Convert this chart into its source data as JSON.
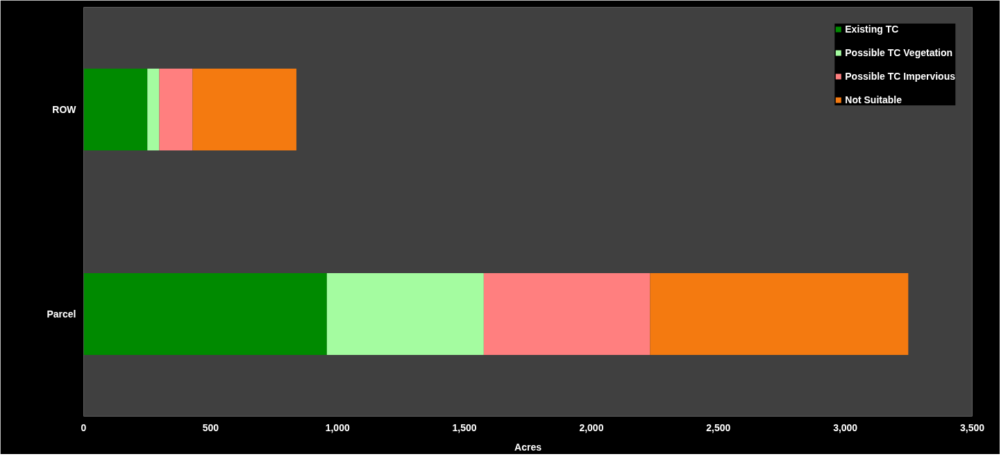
{
  "chart_data": {
    "type": "bar",
    "orientation": "horizontal",
    "stacked": true,
    "xlabel": "Acres",
    "categories": [
      "ROW",
      "Parcel"
    ],
    "series": [
      {
        "name": "Existing TC",
        "color": "#008a00",
        "values": [
          251,
          958
        ]
      },
      {
        "name": "Possible TC Vegetation",
        "color": "#a4fca0",
        "values": [
          47,
          618
        ]
      },
      {
        "name": "Possible TC Impervious",
        "color": "#ff7f7f",
        "values": [
          131,
          655
        ]
      },
      {
        "name": "Not Suitable",
        "color": "#f47a10",
        "values": [
          409,
          1017
        ]
      }
    ],
    "xlim": [
      0,
      3500
    ],
    "xticks": [
      0,
      {
        "value": 500,
        "label": "500"
      },
      {
        "value": 1000,
        "label": "1,000"
      },
      {
        "value": 1500,
        "label": "1,500"
      },
      {
        "value": 2000,
        "label": "2,000"
      },
      {
        "value": 2500,
        "label": "2,500"
      },
      {
        "value": 3000,
        "label": "3,000"
      },
      {
        "value": 3500,
        "label": "3,500"
      }
    ],
    "grid": false,
    "legend": "top right"
  }
}
